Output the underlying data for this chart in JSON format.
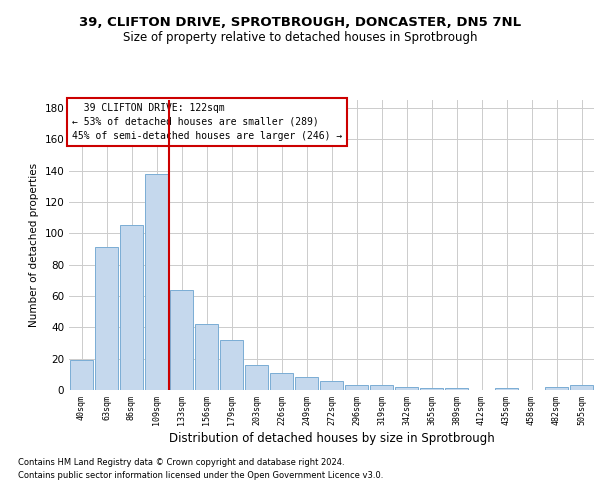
{
  "title_line1": "39, CLIFTON DRIVE, SPROTBROUGH, DONCASTER, DN5 7NL",
  "title_line2": "Size of property relative to detached houses in Sprotbrough",
  "xlabel": "Distribution of detached houses by size in Sprotbrough",
  "ylabel": "Number of detached properties",
  "categories": [
    "40sqm",
    "63sqm",
    "86sqm",
    "109sqm",
    "133sqm",
    "156sqm",
    "179sqm",
    "203sqm",
    "226sqm",
    "249sqm",
    "272sqm",
    "296sqm",
    "319sqm",
    "342sqm",
    "365sqm",
    "389sqm",
    "412sqm",
    "435sqm",
    "458sqm",
    "482sqm",
    "505sqm"
  ],
  "values": [
    19,
    91,
    105,
    138,
    64,
    42,
    32,
    16,
    11,
    8,
    6,
    3,
    3,
    2,
    1,
    1,
    0,
    1,
    0,
    2,
    3
  ],
  "bar_color": "#c5d8ed",
  "bar_edge_color": "#7aadd4",
  "vline_x": 3.5,
  "vline_color": "#cc0000",
  "annotation_text": "  39 CLIFTON DRIVE: 122sqm\n← 53% of detached houses are smaller (289)\n45% of semi-detached houses are larger (246) →",
  "annotation_box_color": "#ffffff",
  "annotation_box_edge": "#cc0000",
  "ylim": [
    0,
    185
  ],
  "yticks": [
    0,
    20,
    40,
    60,
    80,
    100,
    120,
    140,
    160,
    180
  ],
  "footer_line1": "Contains HM Land Registry data © Crown copyright and database right 2024.",
  "footer_line2": "Contains public sector information licensed under the Open Government Licence v3.0.",
  "background_color": "#ffffff",
  "grid_color": "#cccccc",
  "title_fontsize": 9.5,
  "subtitle_fontsize": 8.5
}
